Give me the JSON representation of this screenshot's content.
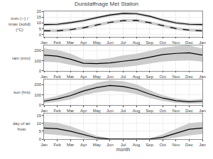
{
  "chart_data": [
    {
      "type": "line",
      "title": "Dunstaffnage Met Station",
      "ylabel": "tmin (--) / tmax (solid) (°C)",
      "x": [
        1,
        2,
        3,
        4,
        5,
        6,
        7,
        8,
        9,
        10,
        11,
        12,
        13
      ],
      "xlim": [
        1,
        13
      ],
      "xticks": [
        {
          "value": 1,
          "label": "Jan"
        },
        {
          "value": 2,
          "label": "Feb"
        },
        {
          "value": 3,
          "label": "Mar"
        },
        {
          "value": 4,
          "label": "Apr"
        },
        {
          "value": 5,
          "label": "May"
        },
        {
          "value": 6,
          "label": "Jun"
        },
        {
          "value": 7,
          "label": "Jul"
        },
        {
          "value": 8,
          "label": "Aug"
        },
        {
          "value": 9,
          "label": "Sep"
        },
        {
          "value": 10,
          "label": "Oct"
        },
        {
          "value": 11,
          "label": "Nov"
        },
        {
          "value": 12,
          "label": "Dec"
        },
        {
          "value": 13,
          "label": "Jan"
        }
      ],
      "ylim": [
        -2,
        20
      ],
      "yticks": [
        0,
        5,
        10,
        15,
        20
      ],
      "grid": true,
      "series": [
        {
          "color": "#000000",
          "line_style": "solid",
          "values": [
            8.5,
            8.8,
            10.2,
            12.0,
            14.5,
            16.8,
            18.2,
            18.0,
            15.8,
            12.5,
            10.0,
            8.8,
            8.5
          ],
          "band": {
            "color": "#cccccc",
            "low": [
              7.3,
              7.6,
              9.0,
              10.8,
              13.3,
              15.6,
              17.0,
              16.8,
              14.6,
              11.3,
              8.8,
              7.6,
              7.3
            ],
            "high": [
              9.7,
              10.0,
              11.4,
              13.2,
              15.7,
              18.0,
              19.4,
              19.2,
              17.0,
              13.7,
              11.2,
              10.0,
              9.7
            ]
          }
        },
        {
          "color": "#000000",
          "line_style": "dashed",
          "values": [
            3.2,
            3.2,
            4.2,
            5.8,
            8.2,
            10.5,
            12.0,
            12.2,
            10.2,
            7.5,
            5.2,
            3.8,
            3.2
          ],
          "band": {
            "color": "#cccccc",
            "low": [
              2.0,
              2.0,
              3.0,
              4.6,
              7.0,
              9.3,
              10.8,
              11.0,
              9.0,
              6.3,
              4.0,
              2.6,
              2.0
            ],
            "high": [
              4.4,
              4.4,
              5.4,
              7.0,
              9.4,
              11.7,
              13.2,
              13.4,
              11.4,
              8.7,
              6.4,
              5.0,
              4.4
            ]
          }
        }
      ]
    },
    {
      "type": "line",
      "ylabel": "rain (mm)",
      "x": [
        1,
        2,
        3,
        4,
        5,
        6,
        7,
        8,
        9,
        10,
        11,
        12,
        13
      ],
      "xlim": [
        1,
        13
      ],
      "xticks": [
        {
          "value": 1,
          "label": "Jan"
        },
        {
          "value": 2,
          "label": "Feb"
        },
        {
          "value": 3,
          "label": "Mar"
        },
        {
          "value": 4,
          "label": "Apr"
        },
        {
          "value": 5,
          "label": "May"
        },
        {
          "value": 6,
          "label": "Jun"
        },
        {
          "value": 7,
          "label": "Jul"
        },
        {
          "value": 8,
          "label": "Aug"
        },
        {
          "value": 9,
          "label": "Sep"
        },
        {
          "value": 10,
          "label": "Oct"
        },
        {
          "value": 11,
          "label": "Nov"
        },
        {
          "value": 12,
          "label": "Dec"
        },
        {
          "value": 13,
          "label": "Jan"
        }
      ],
      "ylim": [
        0,
        250
      ],
      "yticks": [
        0,
        100,
        200
      ],
      "grid": true,
      "series": [
        {
          "color": "#000000",
          "line_style": "solid",
          "values": [
            155,
            145,
            115,
            75,
            72,
            78,
            95,
            110,
            135,
            160,
            172,
            178,
            155
          ],
          "band": {
            "color": "#cccccc",
            "low": [
              90,
              85,
              60,
              35,
              32,
              30,
              37,
              52,
              73,
              92,
              100,
              106,
              90
            ],
            "high": [
              220,
              205,
              170,
              115,
              112,
              126,
              153,
              168,
              197,
              228,
              244,
              250,
              220
            ]
          }
        }
      ]
    },
    {
      "type": "line",
      "ylabel": "sun (hrs)",
      "x": [
        1,
        2,
        3,
        4,
        5,
        6,
        7,
        8,
        9,
        10,
        11,
        12,
        13
      ],
      "xlim": [
        1,
        13
      ],
      "xticks": [
        {
          "value": 1,
          "label": "Jan"
        },
        {
          "value": 2,
          "label": "Feb"
        },
        {
          "value": 3,
          "label": "Mar"
        },
        {
          "value": 4,
          "label": "Apr"
        },
        {
          "value": 5,
          "label": "May"
        },
        {
          "value": 6,
          "label": "Jun"
        },
        {
          "value": 7,
          "label": "Jul"
        },
        {
          "value": 8,
          "label": "Aug"
        },
        {
          "value": 9,
          "label": "Sep"
        },
        {
          "value": 10,
          "label": "Oct"
        },
        {
          "value": 11,
          "label": "Nov"
        },
        {
          "value": 12,
          "label": "Dec"
        },
        {
          "value": 13,
          "label": "Jan"
        }
      ],
      "ylim": [
        0,
        250
      ],
      "yticks": [
        0,
        100,
        200
      ],
      "grid": true,
      "series": [
        {
          "color": "#000000",
          "line_style": "solid",
          "values": [
            38,
            60,
            92,
            138,
            172,
            192,
            182,
            155,
            108,
            68,
            42,
            32,
            38
          ],
          "band": {
            "color": "#cccccc",
            "low": [
              16,
              32,
              54,
              95,
              124,
              140,
              130,
              107,
              70,
              40,
              20,
              14,
              16
            ],
            "high": [
              60,
              88,
              130,
              181,
              220,
              244,
              234,
              203,
              146,
              96,
              64,
              50,
              60
            ]
          }
        }
      ]
    },
    {
      "type": "line",
      "ylabel": "day of air frost",
      "xlabel": "month",
      "x": [
        1,
        2,
        3,
        4,
        5,
        6,
        7,
        8,
        9,
        10,
        11,
        12,
        13
      ],
      "xlim": [
        1,
        13
      ],
      "xticks": [
        {
          "value": 1,
          "label": "Jan"
        },
        {
          "value": 2,
          "label": "Feb"
        },
        {
          "value": 3,
          "label": "Mar"
        },
        {
          "value": 4,
          "label": "Apr"
        },
        {
          "value": 5,
          "label": "May"
        },
        {
          "value": 6,
          "label": "Jun"
        },
        {
          "value": 7,
          "label": "Jul"
        },
        {
          "value": 8,
          "label": "Aug"
        },
        {
          "value": 9,
          "label": "Sep"
        },
        {
          "value": 10,
          "label": "Oct"
        },
        {
          "value": 11,
          "label": "Nov"
        },
        {
          "value": 12,
          "label": "Dec"
        },
        {
          "value": 13,
          "label": "Jan"
        }
      ],
      "ylim": [
        0,
        16
      ],
      "yticks": [
        0,
        5,
        10,
        15
      ],
      "grid": true,
      "series": [
        {
          "color": "#000000",
          "line_style": "solid",
          "values": [
            7.0,
            6.5,
            5.0,
            2.8,
            0.8,
            0.1,
            0.0,
            0.0,
            0.1,
            1.2,
            3.8,
            6.2,
            7.0
          ],
          "band": {
            "color": "#cccccc",
            "low": [
              3.2,
              2.7,
              1.8,
              0.6,
              0,
              0,
              0,
              0,
              0,
              0,
              1.0,
              2.4,
              3.2
            ],
            "high": [
              10.8,
              10.3,
              8.2,
              5.0,
              2.0,
              0.5,
              0.1,
              0.1,
              0.5,
              3.0,
              6.6,
              10.0,
              10.8
            ]
          }
        }
      ]
    }
  ]
}
